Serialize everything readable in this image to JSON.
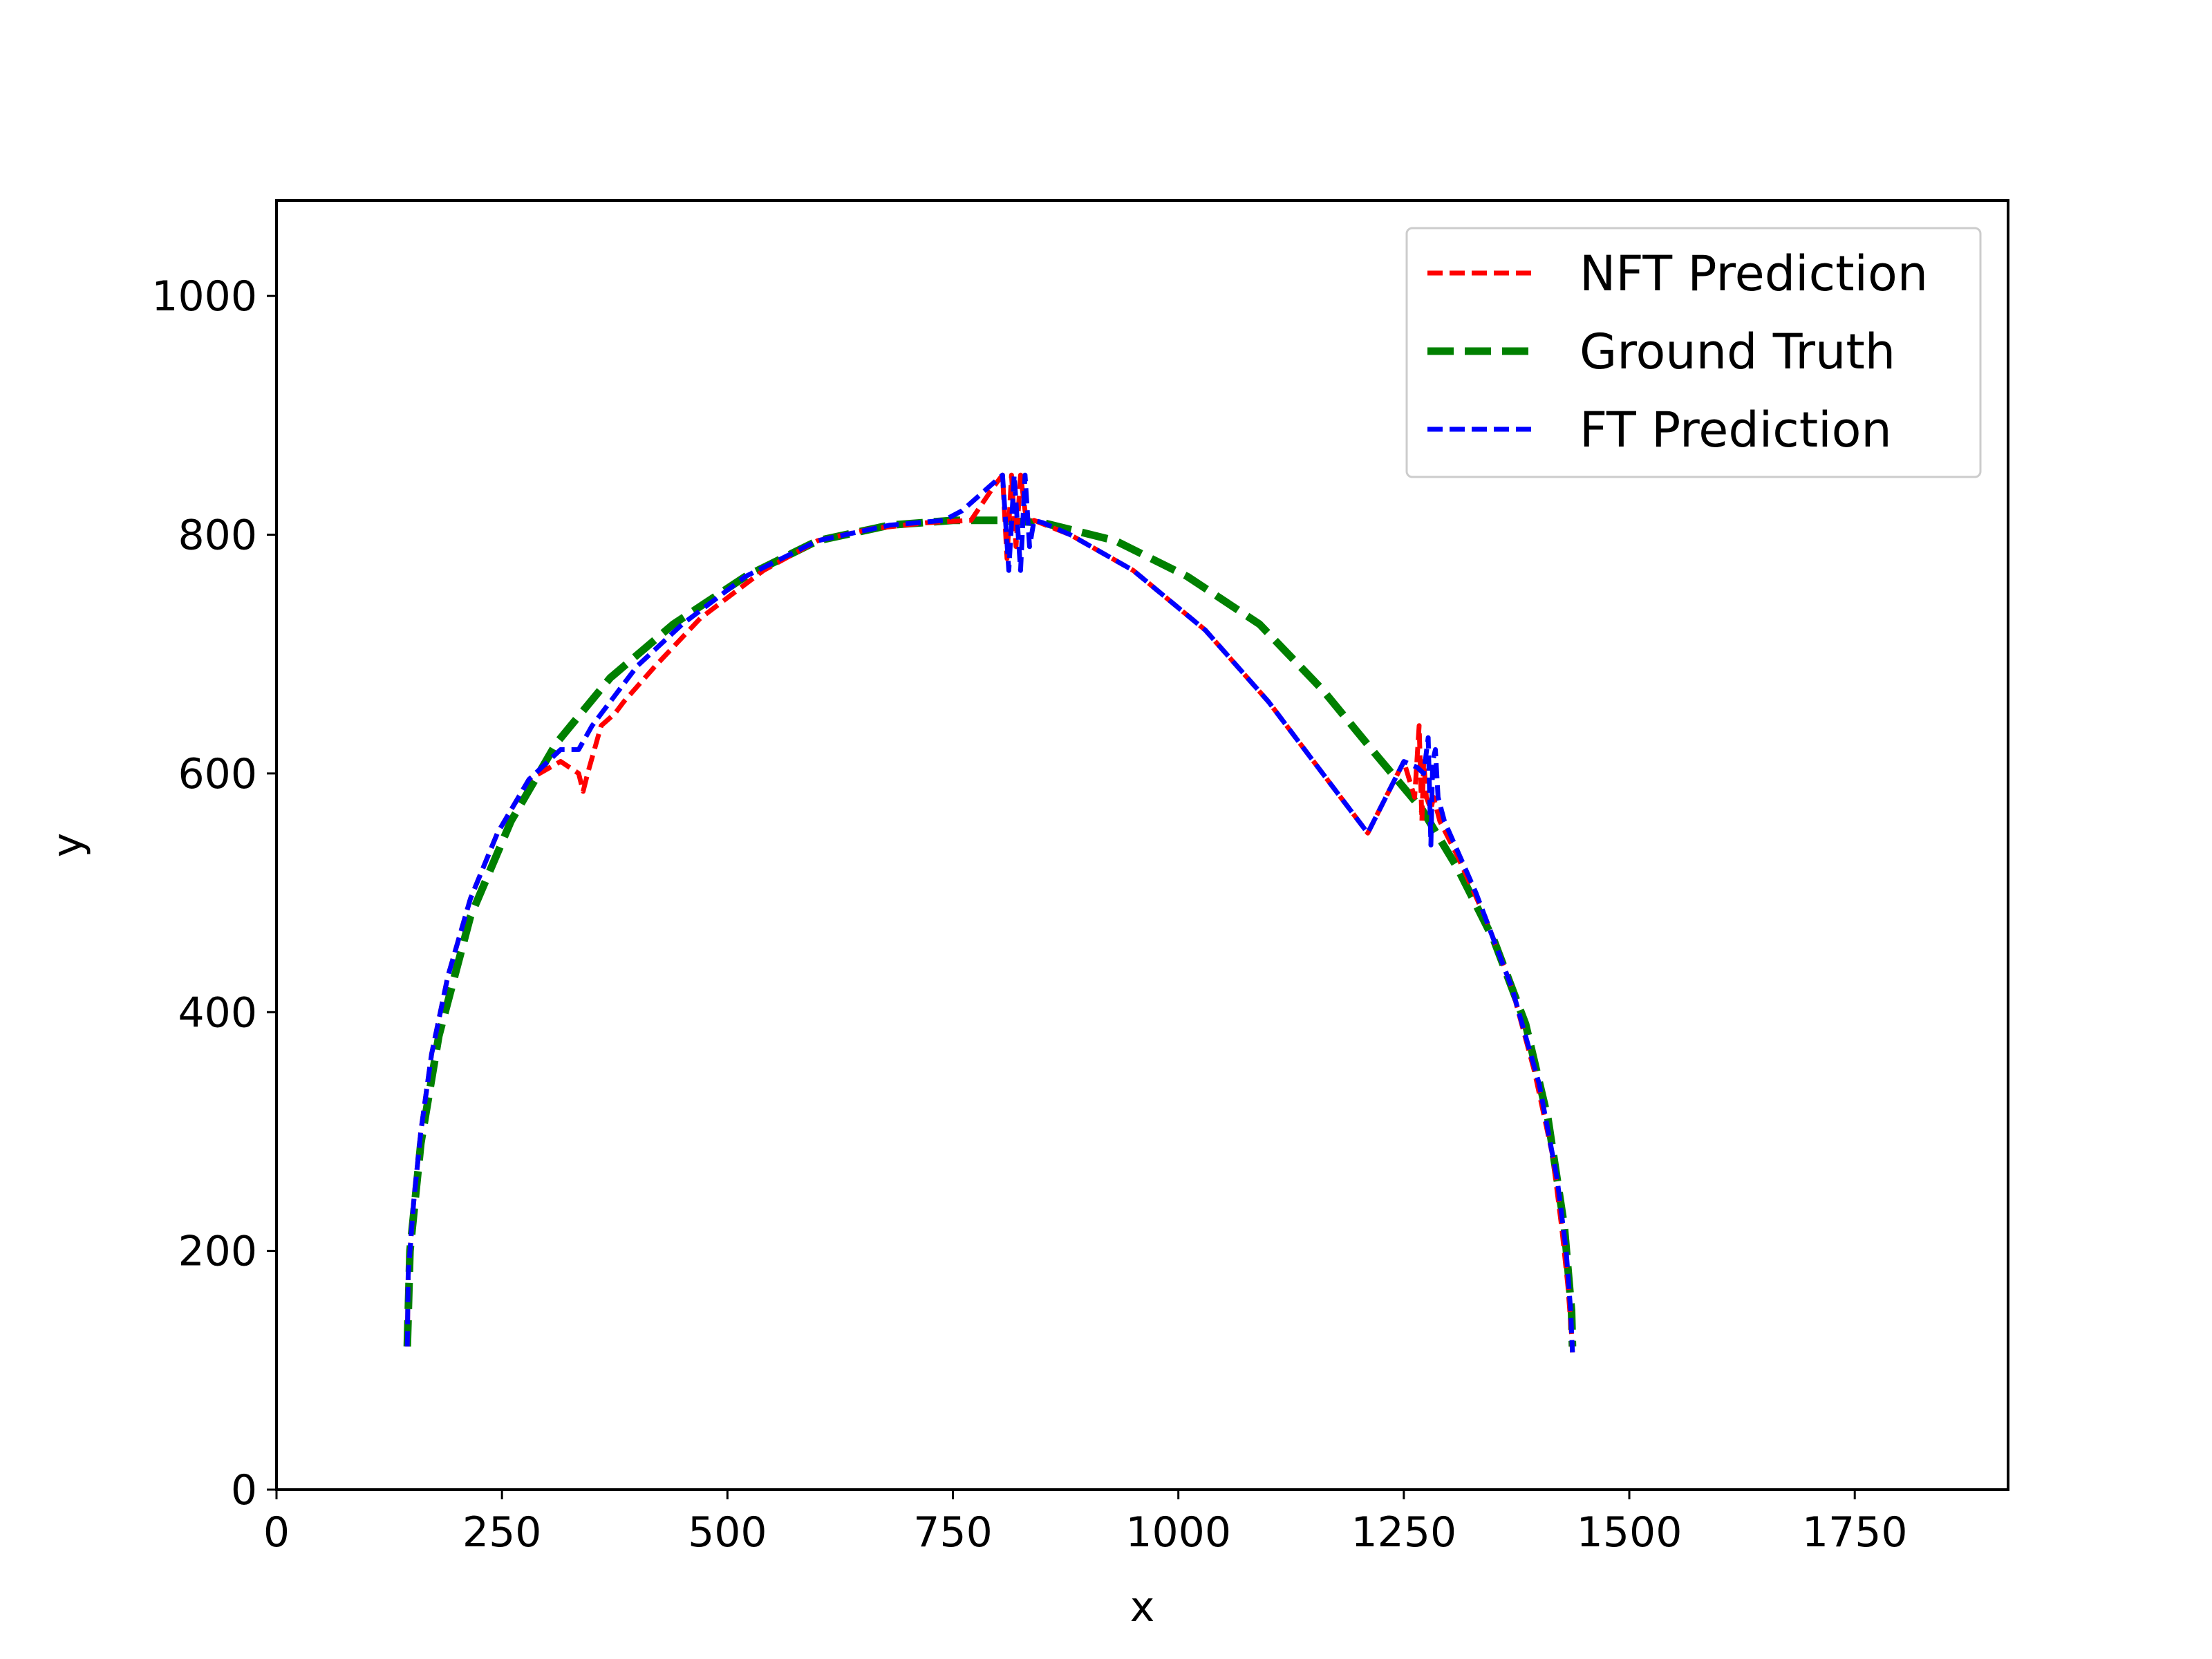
{
  "chart_data": {
    "type": "line",
    "title": "",
    "xlabel": "x",
    "ylabel": "y",
    "xlim": [
      0,
      1920
    ],
    "ylim": [
      0,
      1080
    ],
    "xticks": [
      0,
      250,
      500,
      750,
      1000,
      1250,
      1500,
      1750
    ],
    "yticks": [
      0,
      200,
      400,
      600,
      800,
      1000
    ],
    "xtick_labels": [
      "0",
      "250",
      "500",
      "750",
      "1000",
      "1250",
      "1500",
      "1750"
    ],
    "ytick_labels": [
      "0",
      "200",
      "400",
      "600",
      "800",
      "1000"
    ],
    "grid": false,
    "legend": {
      "placement": "top-right"
    },
    "series": [
      {
        "name": "NFT Prediction",
        "color": "#ff0000",
        "style": "dashed",
        "x": [
          145,
          146,
          152,
          160,
          172,
          190,
          215,
          245,
          280,
          315,
          335,
          340,
          345,
          360,
          375,
          385,
          420,
          470,
          540,
          600,
          660,
          720,
          770,
          795,
          805,
          810,
          815,
          820,
          825,
          830,
          835,
          840,
          880,
          950,
          1030,
          1100,
          1160,
          1210,
          1250,
          1262,
          1267,
          1270,
          1272,
          1275,
          1280,
          1283,
          1290,
          1310,
          1340,
          1370,
          1395,
          1415,
          1425,
          1432,
          1436,
          1437
        ],
        "y": [
          120,
          180,
          240,
          300,
          365,
          430,
          495,
          550,
          595,
          610,
          600,
          585,
          600,
          640,
          650,
          660,
          690,
          730,
          770,
          795,
          805,
          810,
          812,
          840,
          850,
          780,
          850,
          790,
          850,
          820,
          810,
          812,
          800,
          770,
          720,
          660,
          600,
          550,
          610,
          580,
          640,
          560,
          610,
          580,
          570,
          580,
          560,
          530,
          480,
          420,
          350,
          280,
          220,
          170,
          130,
          115
        ]
      },
      {
        "name": "Ground Truth",
        "color": "#008000",
        "style": "dashed",
        "x": [
          145,
          148,
          160,
          180,
          215,
          260,
          310,
          370,
          440,
          520,
          600,
          680,
          750,
          800,
          850,
          930,
          1010,
          1090,
          1160,
          1220,
          1270,
          1310,
          1350,
          1385,
          1410,
          1428,
          1436,
          1437
        ],
        "y": [
          120,
          200,
          290,
          380,
          480,
          560,
          625,
          680,
          725,
          765,
          795,
          808,
          812,
          812,
          810,
          795,
          765,
          725,
          670,
          615,
          570,
          520,
          460,
          390,
          310,
          220,
          150,
          120
        ]
      },
      {
        "name": "FT Prediction",
        "color": "#0000ff",
        "style": "dashed",
        "x": [
          145,
          146,
          152,
          160,
          172,
          190,
          215,
          245,
          280,
          315,
          335,
          350,
          370,
          400,
          450,
          520,
          600,
          680,
          740,
          760,
          790,
          805,
          812,
          818,
          825,
          830,
          835,
          840,
          850,
          880,
          950,
          1030,
          1100,
          1160,
          1210,
          1250,
          1265,
          1272,
          1277,
          1280,
          1282,
          1285,
          1288,
          1295,
          1330,
          1370,
          1400,
          1420,
          1430,
          1435,
          1437
        ],
        "y": [
          120,
          180,
          240,
          300,
          365,
          430,
          495,
          550,
          595,
          620,
          620,
          640,
          660,
          690,
          725,
          765,
          795,
          808,
          812,
          820,
          840,
          850,
          770,
          850,
          770,
          850,
          790,
          812,
          810,
          800,
          770,
          720,
          660,
          600,
          550,
          610,
          605,
          600,
          630,
          540,
          610,
          620,
          580,
          560,
          500,
          420,
          340,
          260,
          200,
          150,
          115
        ]
      }
    ]
  }
}
